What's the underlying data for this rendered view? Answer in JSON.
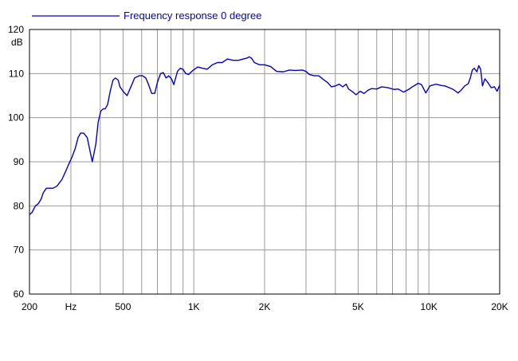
{
  "chart_data": {
    "type": "line",
    "title": "",
    "xlabel": "Hz",
    "ylabel": "dB",
    "x_scale": "log",
    "xlim": [
      200,
      20000
    ],
    "ylim": [
      60,
      120
    ],
    "grid": true,
    "legend": {
      "placement": "top-left",
      "text": "Frequency response 0 degree"
    },
    "colors": {
      "series": "#0000cc",
      "grid": "#999999",
      "axis": "#000000"
    },
    "y_ticks": [
      {
        "value": 60,
        "label": "60"
      },
      {
        "value": 70,
        "label": "70"
      },
      {
        "value": 80,
        "label": "80"
      },
      {
        "value": 90,
        "label": "90"
      },
      {
        "value": 100,
        "label": "100"
      },
      {
        "value": 110,
        "label": "110"
      },
      {
        "value": 120,
        "label": "120"
      }
    ],
    "x_ticks": [
      {
        "value": 200,
        "label": "200"
      },
      {
        "value": 300,
        "label": "Hz"
      },
      {
        "value": 500,
        "label": "500"
      },
      {
        "value": 1000,
        "label": "1K"
      },
      {
        "value": 2000,
        "label": "2K"
      },
      {
        "value": 5000,
        "label": "5K"
      },
      {
        "value": 10000,
        "label": "10K"
      },
      {
        "value": 20000,
        "label": "20K"
      }
    ],
    "x_gridlines": [
      200,
      300,
      400,
      500,
      600,
      700,
      800,
      900,
      1000,
      2000,
      3000,
      4000,
      5000,
      6000,
      7000,
      8000,
      9000,
      10000,
      20000
    ],
    "y_gridlines": [
      60,
      70,
      80,
      90,
      100,
      110,
      120
    ],
    "series": [
      {
        "name": "Frequency response 0 degree",
        "x": [
          200,
          205,
          212,
          218,
          224,
          229,
          236,
          244,
          252,
          262,
          275,
          286,
          294,
          303,
          313,
          322,
          330,
          340,
          352,
          360,
          370,
          383,
          392,
          402,
          412,
          420,
          430,
          441,
          453,
          464,
          477,
          485,
          500,
          520,
          540,
          560,
          585,
          605,
          625,
          642,
          662,
          682,
          700,
          722,
          742,
          762,
          782,
          804,
          822,
          852,
          875,
          898,
          925,
          950,
          990,
          1040,
          1090,
          1140,
          1200,
          1260,
          1320,
          1390,
          1470,
          1550,
          1620,
          1680,
          1720,
          1760,
          1810,
          1900,
          2000,
          2120,
          2250,
          2400,
          2550,
          2700,
          2900,
          3000,
          3100,
          3250,
          3400,
          3550,
          3700,
          3850,
          4000,
          4150,
          4300,
          4450,
          4550,
          4700,
          4900,
          5100,
          5300,
          5500,
          5700,
          6000,
          6300,
          6700,
          7100,
          7400,
          7800,
          8200,
          8500,
          8700,
          9000,
          9300,
          9700,
          10100,
          10700,
          11300,
          11700,
          12200,
          12700,
          13300,
          13700,
          14200,
          14700,
          15000,
          15300,
          15600,
          16000,
          16300,
          16600,
          16900,
          17300,
          17800,
          18400,
          19000,
          19500,
          20000
        ],
        "y": [
          78,
          78.5,
          80,
          80.5,
          81.5,
          83,
          84,
          84,
          84,
          84.5,
          86,
          88,
          89.5,
          91,
          93,
          95.5,
          96.5,
          96.5,
          95.5,
          93,
          90,
          94,
          99,
          101.5,
          102,
          102,
          103,
          106,
          108.5,
          109,
          108.5,
          107,
          106,
          105,
          107,
          109,
          109.5,
          109.5,
          109,
          107.5,
          105.5,
          105.5,
          108,
          110,
          110.2,
          109,
          109.5,
          108.8,
          107.5,
          110.5,
          111.2,
          111,
          110,
          109.8,
          110.7,
          111.5,
          111.2,
          111,
          112,
          112.5,
          112.5,
          113.3,
          113,
          113,
          113.3,
          113.5,
          113.8,
          113.5,
          112.5,
          112,
          112,
          111.6,
          110.5,
          110.4,
          110.8,
          110.7,
          110.8,
          110.5,
          109.8,
          109.5,
          109.5,
          108.7,
          108,
          107,
          107.2,
          107.6,
          107,
          107.6,
          106.5,
          106,
          105.2,
          106,
          105.5,
          106.2,
          106.6,
          106.5,
          107,
          106.8,
          106.4,
          106.5,
          105.8,
          106.4,
          107,
          107.3,
          107.8,
          107.5,
          105.6,
          107.2,
          107.6,
          107.3,
          107.2,
          106.8,
          106.4,
          105.6,
          106.2,
          107.2,
          107.7,
          109,
          110.8,
          111.2,
          110.4,
          111.8,
          111,
          107.2,
          108.8,
          108,
          106.8,
          107,
          106,
          107.4
        ]
      }
    ]
  }
}
